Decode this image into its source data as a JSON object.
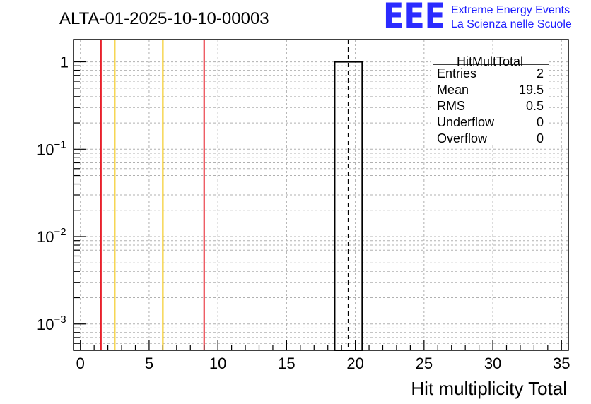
{
  "chart_data": {
    "type": "bar",
    "title": "ALTA-01-2025-10-10-00003",
    "xlabel": "Hit multiplicity Total",
    "ylabel": "",
    "xlim": [
      -0.5,
      35.5
    ],
    "ylim": [
      0.0005,
      1.8
    ],
    "yscale": "log",
    "grid": true,
    "x_ticks": [
      0,
      5,
      10,
      15,
      20,
      25,
      30,
      35
    ],
    "x_tick_labels": [
      "0",
      "5",
      "10",
      "15",
      "20",
      "25",
      "30",
      "35"
    ],
    "y_ticks": [
      {
        "value": 1,
        "base": "1",
        "exp": ""
      },
      {
        "value": 0.1,
        "base": "10",
        "exp": "−1"
      },
      {
        "value": 0.01,
        "base": "10",
        "exp": "−2"
      },
      {
        "value": 0.001,
        "base": "10",
        "exp": "−3"
      }
    ],
    "bins": [
      {
        "low": 18.5,
        "high": 20.5,
        "value": 1
      }
    ],
    "vertical_lines": [
      {
        "x": 1.5,
        "color": "#e8202a"
      },
      {
        "x": 2.5,
        "color": "#f2c200"
      },
      {
        "x": 6.0,
        "color": "#f2c200"
      },
      {
        "x": 9.0,
        "color": "#e8202a"
      },
      {
        "x": 19.5,
        "color": "#000000",
        "dashed": true
      }
    ],
    "stats_box": {
      "name": "HitMultTotal",
      "rows": [
        {
          "label": "Entries",
          "value": "2"
        },
        {
          "label": "Mean",
          "value": "19.5"
        },
        {
          "label": "RMS",
          "value": "0.5"
        },
        {
          "label": "Underflow",
          "value": "0"
        },
        {
          "label": "Overflow",
          "value": "0"
        }
      ]
    }
  },
  "logo": {
    "mark": "EEE",
    "line1": "Extreme Energy Events",
    "line2": "La Scienza nelle Scuole"
  }
}
